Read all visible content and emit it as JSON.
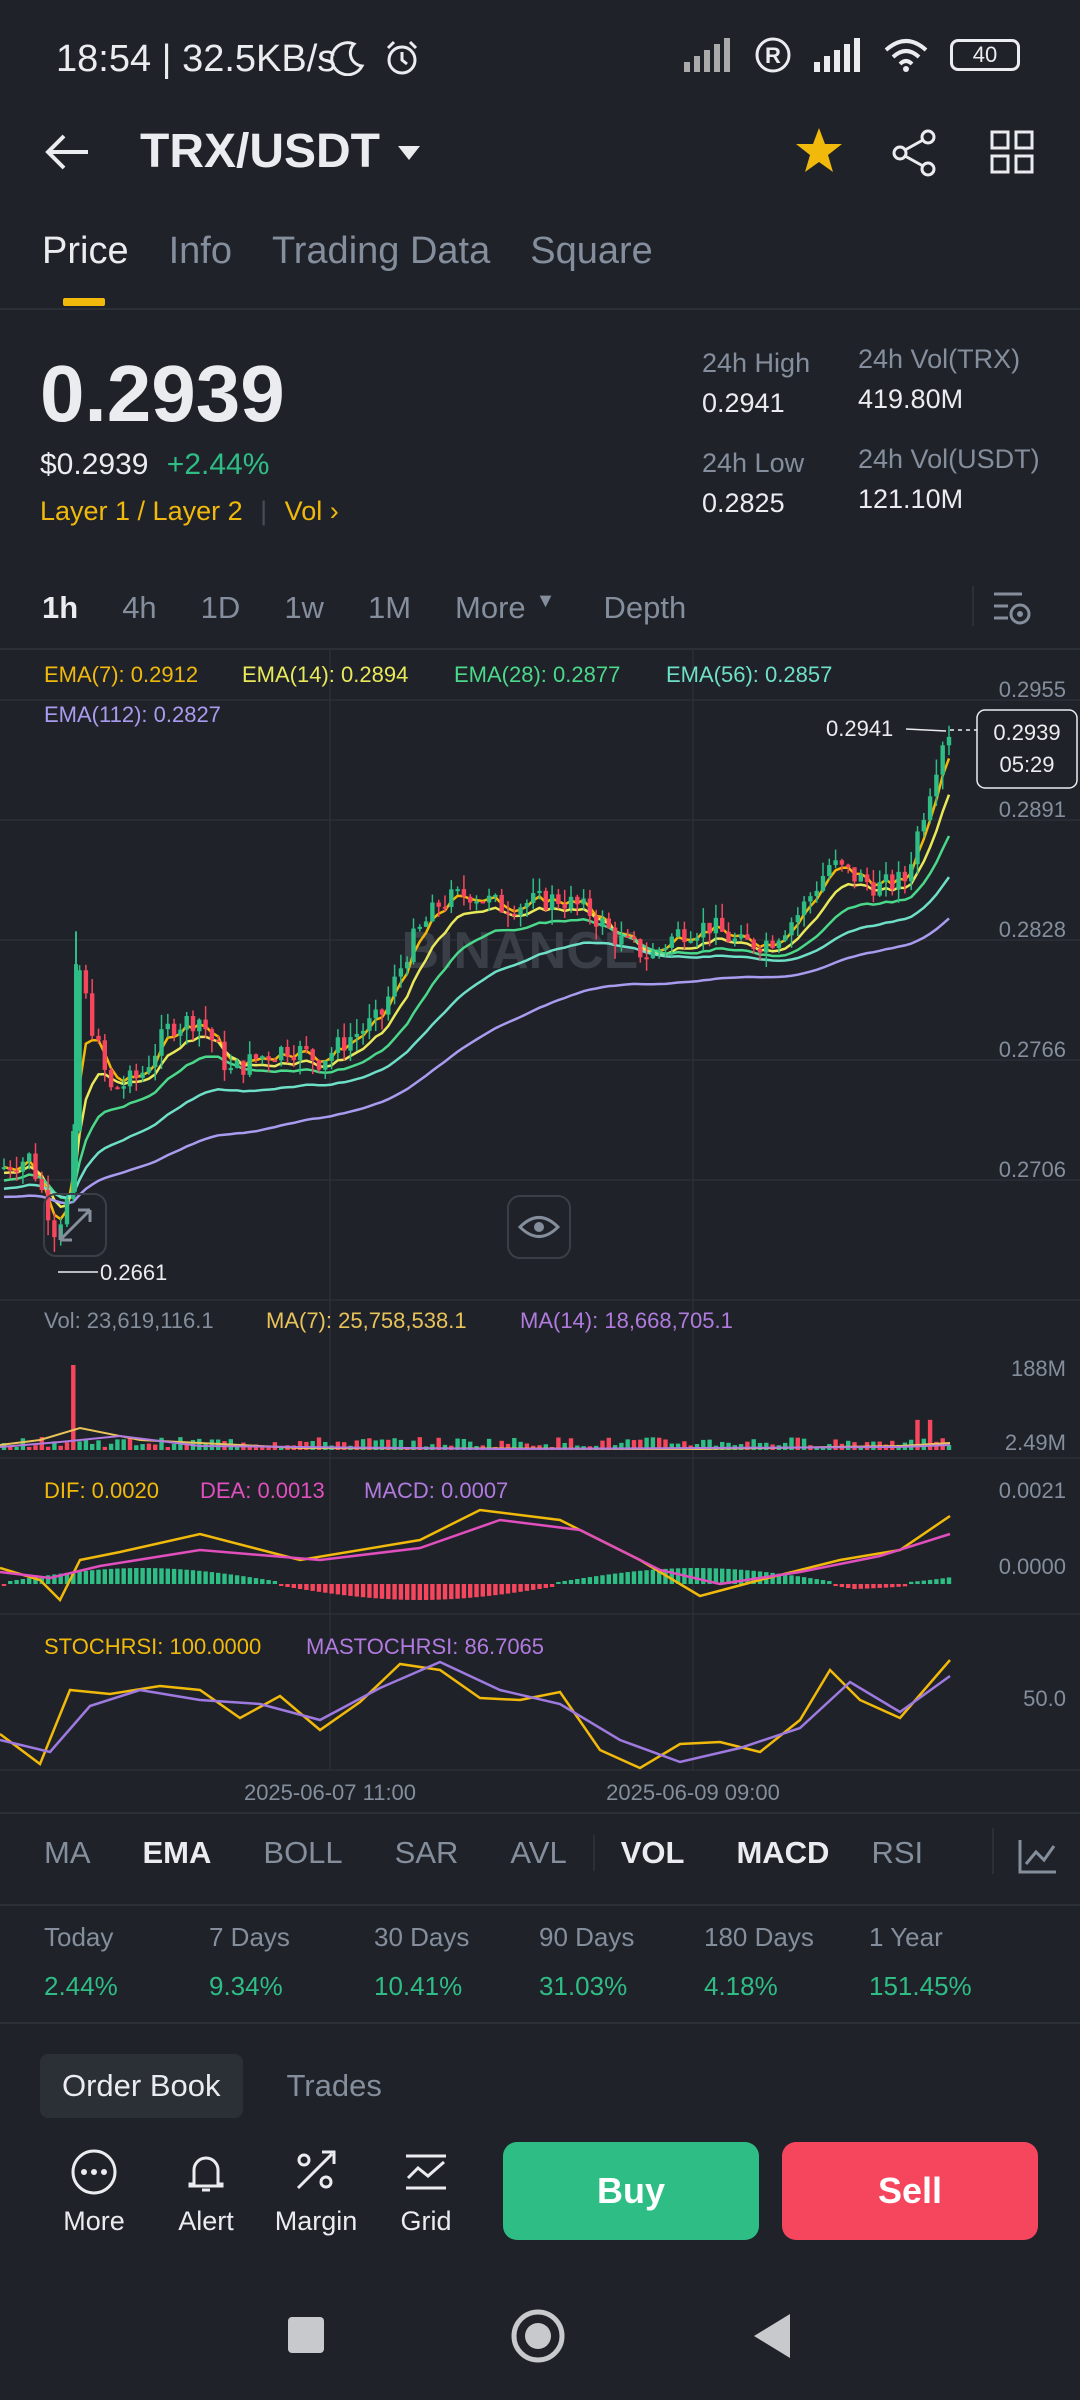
{
  "status_bar": {
    "time": "18:54 | 32.5KB/s",
    "battery": "40"
  },
  "header": {
    "pair": "TRX/USDT"
  },
  "tabs": [
    {
      "label": "Price"
    },
    {
      "label": "Info"
    },
    {
      "label": "Trading Data"
    },
    {
      "label": "Square"
    }
  ],
  "price": {
    "last": "0.2939",
    "usd": "$0.2939",
    "change": "+2.44%",
    "tag": "Layer 1 / Layer 2",
    "vol_link": "Vol"
  },
  "stats": {
    "high_label": "24h High",
    "high": "0.2941",
    "low_label": "24h Low",
    "low": "0.2825",
    "vol_trx_label": "24h Vol(TRX)",
    "vol_trx": "419.80M",
    "vol_usdt_label": "24h Vol(USDT)",
    "vol_usdt": "121.10M"
  },
  "timeframes": [
    "1h",
    "4h",
    "1D",
    "1w",
    "1M",
    "More",
    "Depth"
  ],
  "chart": {
    "ema7": "EMA(7): 0.2912",
    "ema14": "EMA(14): 0.2894",
    "ema28": "EMA(28): 0.2877",
    "ema56": "EMA(56): 0.2857",
    "ema112": "EMA(112): 0.2827",
    "price_axis": [
      "0.2955",
      "0.2891",
      "0.2828",
      "0.2766",
      "0.2706"
    ],
    "high_marker": "0.2941",
    "low_marker": "0.2661",
    "current_price": "0.2939",
    "countdown": "05:29",
    "watermark": "BINANCE",
    "vol_label": "Vol: 23,619,116.1",
    "vol_ma7": "MA(7): 25,758,538.1",
    "vol_ma14": "MA(14): 18,668,705.1",
    "vol_axis": [
      "188M",
      "2.49M"
    ],
    "dif": "DIF: 0.0020",
    "dea": "DEA: 0.0013",
    "macd": "MACD: 0.0007",
    "macd_axis": [
      "0.0021",
      "0.0000"
    ],
    "stochrsi": "STOCHRSI: 100.0000",
    "mastochrsi": "MASTOCHRSI: 86.7065",
    "rsi_axis": "50.0",
    "dates": [
      "2025-06-07 11:00",
      "2025-06-09 09:00"
    ],
    "colors": {
      "ema7": "#f0b90b",
      "ema14": "#e8e85a",
      "ema28": "#4ad98a",
      "ema56": "#6fe0c8",
      "ema112": "#a89cf0",
      "up": "#2ebd85",
      "down": "#f6465d"
    }
  },
  "indicators": [
    "MA",
    "EMA",
    "BOLL",
    "SAR",
    "AVL",
    "VOL",
    "MACD",
    "RSI"
  ],
  "performance": [
    {
      "label": "Today",
      "value": "2.44%"
    },
    {
      "label": "7 Days",
      "value": "9.34%"
    },
    {
      "label": "30 Days",
      "value": "10.41%"
    },
    {
      "label": "90 Days",
      "value": "31.03%"
    },
    {
      "label": "180 Days",
      "value": "4.18%"
    },
    {
      "label": "1 Year",
      "value": "151.45%"
    }
  ],
  "orderbook_tabs": [
    "Order Book",
    "Trades"
  ],
  "bottom_actions": [
    {
      "label": "More",
      "icon": "more-icon"
    },
    {
      "label": "Alert",
      "icon": "bell-icon"
    },
    {
      "label": "Margin",
      "icon": "margin-icon"
    },
    {
      "label": "Grid",
      "icon": "grid-bot-icon"
    }
  ],
  "buy_label": "Buy",
  "sell_label": "Sell"
}
